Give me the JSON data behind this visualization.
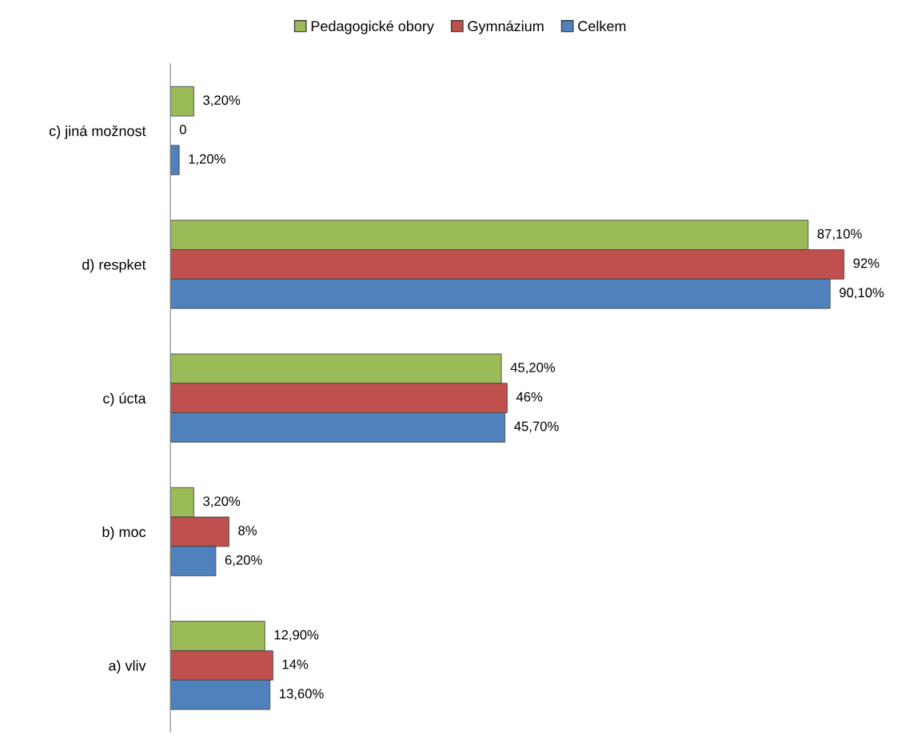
{
  "chart_data": {
    "type": "bar",
    "orientation": "horizontal",
    "legend": "top",
    "tick_labels": "y",
    "categories": [
      "c) jiná možnost",
      "d) respket",
      "c) úcta",
      "b) moc",
      "a) vliv"
    ],
    "series": [
      {
        "name": "Pedagogické obory",
        "color": "#9bbb59",
        "values": [
          3.2,
          87.1,
          45.2,
          3.2,
          12.9
        ],
        "value_labels": [
          "3,20%",
          "87,10%",
          "45,20%",
          "3,20%",
          "12,90%"
        ]
      },
      {
        "name": "Gymnázium",
        "color": "#c0504d",
        "values": [
          0,
          92,
          46,
          8,
          14
        ],
        "value_labels": [
          "0",
          "92%",
          "46%",
          "8%",
          "14%"
        ]
      },
      {
        "name": "Celkem",
        "color": "#4f81bd",
        "values": [
          1.2,
          90.1,
          45.7,
          6.2,
          13.6
        ],
        "value_labels": [
          "1,20%",
          "90,10%",
          "45,70%",
          "6,20%",
          "13,60%"
        ]
      }
    ]
  }
}
